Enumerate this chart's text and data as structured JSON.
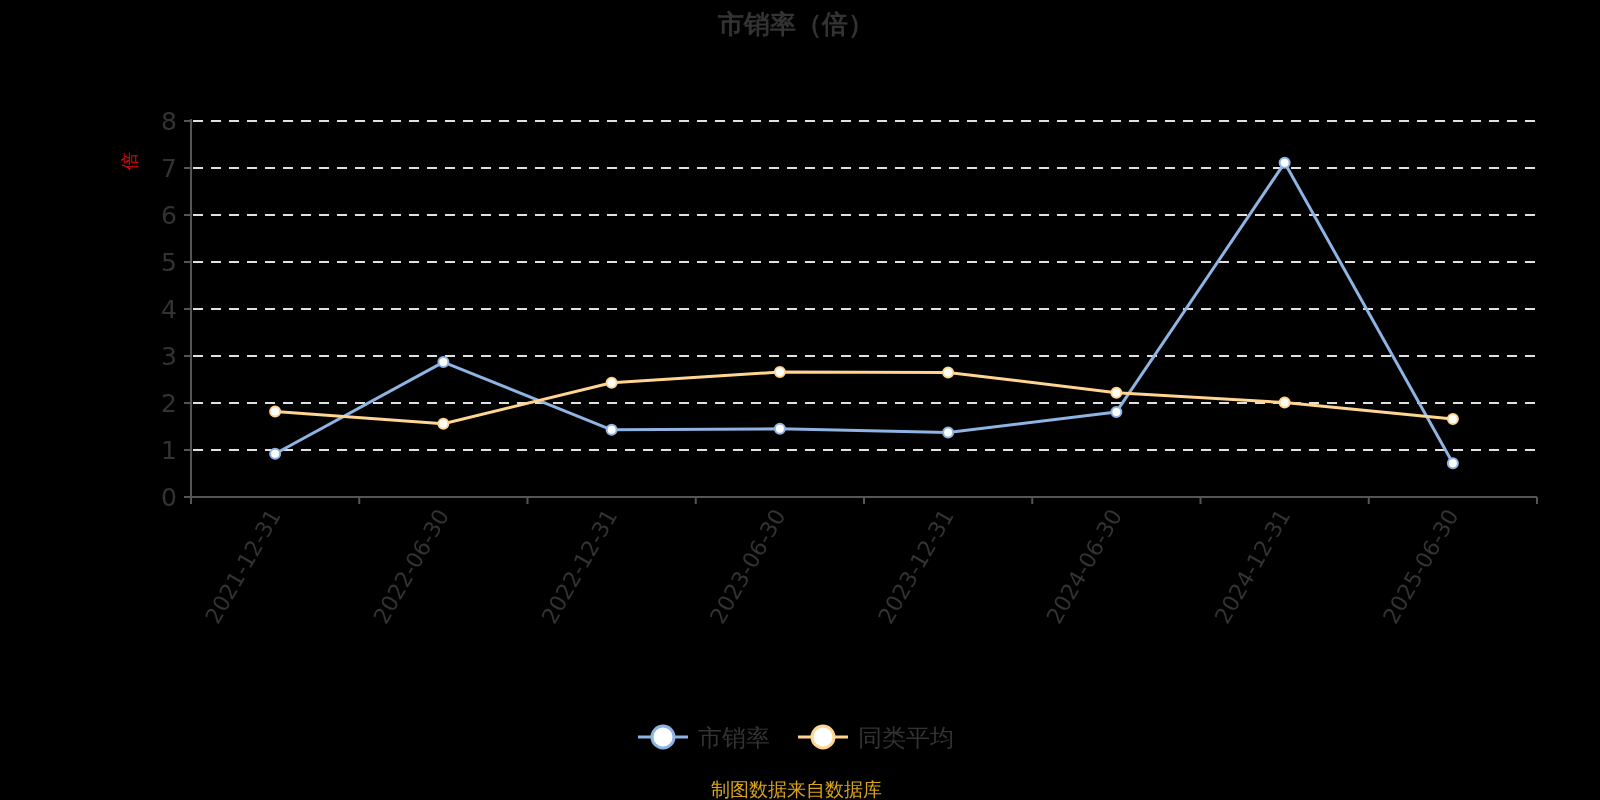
{
  "chart_data": {
    "type": "line",
    "title": "市销率（倍）",
    "ylabel": "倍",
    "categories": [
      "2021-12-31",
      "2022-06-30",
      "2022-12-31",
      "2023-06-30",
      "2023-12-31",
      "2024-06-30",
      "2024-12-31",
      "2025-06-30"
    ],
    "series": [
      {
        "name": "市销率",
        "color": "#8eb4e3",
        "values": [
          0.92,
          2.87,
          1.43,
          1.45,
          1.37,
          1.81,
          7.11,
          0.72
        ]
      },
      {
        "name": "同类平均",
        "color": "#ffd591",
        "values": [
          1.82,
          1.56,
          2.43,
          2.66,
          2.65,
          2.22,
          2.01,
          1.66
        ]
      }
    ],
    "ylim": [
      0,
      8
    ],
    "yticks": [
      0,
      1,
      2,
      3,
      4,
      5,
      6,
      7,
      8
    ],
    "grid": "y",
    "legend": "bottom",
    "marker": "circle",
    "line_style": "solid",
    "annotations": [
      "制图数据来自数据库"
    ]
  }
}
